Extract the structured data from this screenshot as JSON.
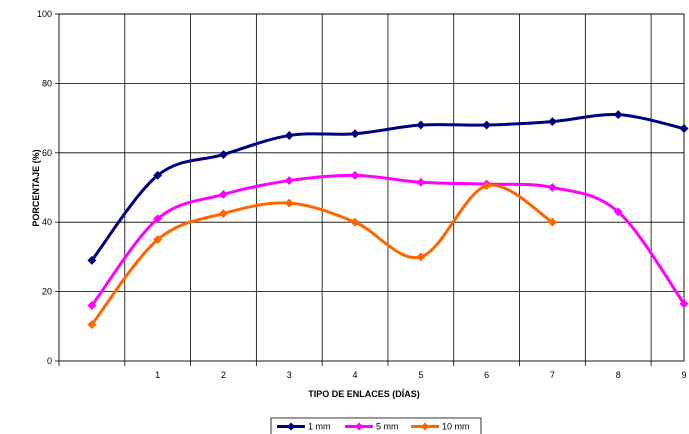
{
  "chart_data": {
    "type": "line",
    "xlabel": "TIPO DE ENLACES (DÍAS)",
    "ylabel": "PORCENTAJE (%)",
    "x_ticks": [
      "1",
      "2",
      "3",
      "4",
      "5",
      "6",
      "7",
      "8",
      "9"
    ],
    "y_ticks": [
      0,
      20,
      40,
      60,
      80,
      100
    ],
    "xlim": [
      -0.5,
      9
    ],
    "ylim": [
      0,
      100
    ],
    "grid": true,
    "legend_position": "bottom",
    "series": [
      {
        "name": "1 mm",
        "color": "#000080",
        "x": [
          0,
          1,
          2,
          3,
          4,
          5,
          6,
          7,
          8,
          9
        ],
        "values": [
          29,
          53.5,
          59.5,
          65,
          65.5,
          68,
          68,
          69,
          71,
          67
        ]
      },
      {
        "name": "5 mm",
        "color": "#ff00ff",
        "x": [
          0,
          1,
          2,
          3,
          4,
          5,
          6,
          7,
          8,
          9
        ],
        "values": [
          16,
          41,
          48,
          52,
          53.5,
          51.5,
          51,
          50,
          43,
          16.5
        ]
      },
      {
        "name": "10 mm",
        "color": "#ff6600",
        "x": [
          0,
          1,
          2,
          3,
          4,
          5,
          6,
          7
        ],
        "values": [
          10.5,
          35,
          42.5,
          45.5,
          40,
          30,
          50.5,
          40
        ]
      }
    ]
  }
}
